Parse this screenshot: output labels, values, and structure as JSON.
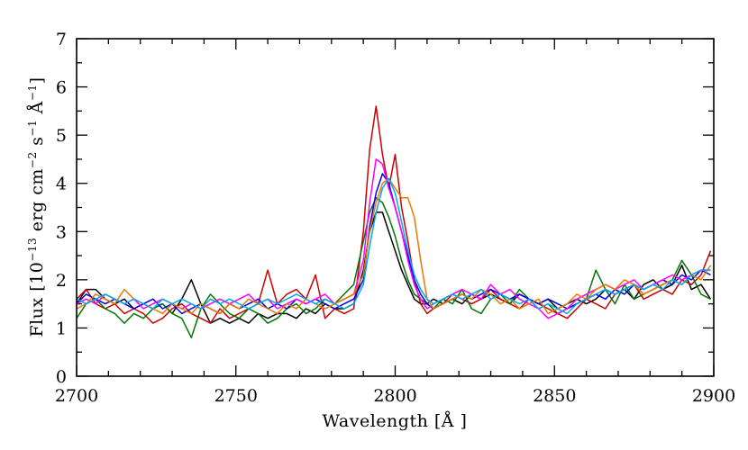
{
  "chart_data": {
    "type": "line",
    "xlabel": "Wavelength [Å ]",
    "ylabel": "Flux [10",
    "ylabel_exp1": "−13",
    "ylabel_mid1": " erg cm",
    "ylabel_exp2": "−2",
    "ylabel_mid2": " s",
    "ylabel_exp3": "−1",
    "ylabel_mid3": " Å",
    "ylabel_exp4": "−1",
    "ylabel_end": "]",
    "xlim": [
      2700,
      2900
    ],
    "ylim": [
      0,
      7
    ],
    "x_ticks": [
      2700,
      2750,
      2800,
      2850,
      2900
    ],
    "y_ticks": [
      0,
      1,
      2,
      3,
      4,
      5,
      6,
      7
    ],
    "grid": false,
    "x": [
      2700,
      2703,
      2706,
      2709,
      2712,
      2715,
      2718,
      2721,
      2724,
      2727,
      2730,
      2733,
      2736,
      2739,
      2742,
      2745,
      2748,
      2751,
      2754,
      2757,
      2760,
      2763,
      2766,
      2769,
      2772,
      2775,
      2778,
      2781,
      2784,
      2787,
      2790,
      2792,
      2794,
      2796,
      2798,
      2800,
      2802,
      2804,
      2806,
      2808,
      2810,
      2812,
      2815,
      2818,
      2821,
      2824,
      2827,
      2830,
      2833,
      2836,
      2839,
      2842,
      2845,
      2848,
      2851,
      2854,
      2857,
      2860,
      2863,
      2866,
      2869,
      2872,
      2875,
      2878,
      2881,
      2884,
      2887,
      2890,
      2893,
      2896,
      2899
    ],
    "series": [
      {
        "color": "#000000",
        "values": [
          1.5,
          1.8,
          1.8,
          1.6,
          1.5,
          1.6,
          1.4,
          1.5,
          1.4,
          1.5,
          1.3,
          1.6,
          2.0,
          1.5,
          1.1,
          1.2,
          1.1,
          1.2,
          1.1,
          1.3,
          1.2,
          1.3,
          1.3,
          1.2,
          1.4,
          1.3,
          1.5,
          1.4,
          1.4,
          1.5,
          2.2,
          3.0,
          3.4,
          3.4,
          3.0,
          2.6,
          2.2,
          1.9,
          1.6,
          1.5,
          1.5,
          1.6,
          1.5,
          1.6,
          1.5,
          1.7,
          1.6,
          1.7,
          1.6,
          1.5,
          1.7,
          1.6,
          1.5,
          1.6,
          1.4,
          1.5,
          1.6,
          1.5,
          1.6,
          1.8,
          1.7,
          1.8,
          1.6,
          1.9,
          2.0,
          1.8,
          1.9,
          2.3,
          1.8,
          1.9,
          1.6
        ]
      },
      {
        "color": "#cc0000",
        "values": [
          1.6,
          1.8,
          1.5,
          1.4,
          1.5,
          1.3,
          1.4,
          1.3,
          1.1,
          1.2,
          1.4,
          1.5,
          1.3,
          1.2,
          1.1,
          1.4,
          1.2,
          1.3,
          1.4,
          1.5,
          2.2,
          1.5,
          1.7,
          1.8,
          1.6,
          2.1,
          1.2,
          1.4,
          1.3,
          1.4,
          3.0,
          4.7,
          5.6,
          4.6,
          3.9,
          4.6,
          3.5,
          2.8,
          2.0,
          1.5,
          1.3,
          1.4,
          1.5,
          1.7,
          1.6,
          1.5,
          1.6,
          1.8,
          1.6,
          1.5,
          1.4,
          1.6,
          1.5,
          1.4,
          1.3,
          1.2,
          1.4,
          1.6,
          1.5,
          1.4,
          1.7,
          1.8,
          1.9,
          1.6,
          1.7,
          1.8,
          1.7,
          2.0,
          1.9,
          2.1,
          2.6
        ]
      },
      {
        "color": "#007700",
        "values": [
          1.2,
          1.5,
          1.6,
          1.4,
          1.3,
          1.1,
          1.3,
          1.2,
          1.4,
          1.5,
          1.3,
          1.2,
          0.8,
          1.4,
          1.7,
          1.5,
          1.3,
          1.2,
          1.4,
          1.3,
          1.1,
          1.2,
          1.4,
          1.5,
          1.3,
          1.4,
          1.6,
          1.5,
          1.7,
          1.9,
          2.8,
          3.4,
          3.7,
          3.6,
          3.3,
          2.9,
          2.4,
          2.0,
          1.7,
          1.6,
          1.5,
          1.4,
          1.6,
          1.5,
          1.8,
          1.4,
          1.3,
          1.6,
          1.7,
          1.5,
          1.8,
          1.6,
          1.4,
          1.5,
          1.3,
          1.4,
          1.5,
          1.6,
          2.2,
          1.8,
          1.5,
          1.9,
          1.6,
          1.7,
          1.8,
          1.9,
          2.0,
          2.4,
          2.1,
          1.7,
          1.6
        ]
      },
      {
        "color": "#0000ee",
        "values": [
          1.5,
          1.7,
          1.6,
          1.5,
          1.6,
          1.5,
          1.4,
          1.5,
          1.6,
          1.4,
          1.5,
          1.3,
          1.4,
          1.5,
          1.4,
          1.3,
          1.5,
          1.4,
          1.5,
          1.6,
          1.4,
          1.5,
          1.4,
          1.6,
          1.5,
          1.6,
          1.5,
          1.4,
          1.5,
          1.6,
          2.0,
          3.1,
          3.8,
          4.2,
          4.0,
          3.5,
          3.0,
          2.5,
          2.0,
          1.7,
          1.5,
          1.4,
          1.5,
          1.6,
          1.7,
          1.6,
          1.7,
          1.8,
          1.7,
          1.6,
          1.7,
          1.6,
          1.5,
          1.6,
          1.5,
          1.4,
          1.5,
          1.6,
          1.7,
          1.6,
          1.8,
          1.7,
          1.9,
          1.8,
          1.9,
          2.0,
          1.9,
          2.1,
          2.0,
          2.2,
          2.1
        ]
      },
      {
        "color": "#ff00ff",
        "values": [
          1.5,
          1.6,
          1.5,
          1.7,
          1.6,
          1.5,
          1.6,
          1.4,
          1.5,
          1.6,
          1.5,
          1.4,
          1.5,
          1.4,
          1.5,
          1.6,
          1.5,
          1.6,
          1.7,
          1.5,
          1.6,
          1.4,
          1.5,
          1.6,
          1.5,
          1.6,
          1.7,
          1.5,
          1.6,
          1.7,
          2.4,
          3.6,
          4.5,
          4.4,
          3.9,
          3.5,
          3.0,
          2.4,
          1.9,
          1.6,
          1.4,
          1.5,
          1.6,
          1.7,
          1.8,
          1.7,
          1.6,
          1.9,
          1.7,
          1.8,
          1.6,
          1.5,
          1.4,
          1.2,
          1.3,
          1.4,
          1.6,
          1.7,
          1.8,
          1.9,
          1.8,
          1.9,
          2.0,
          1.8,
          1.9,
          2.0,
          2.1,
          2.0,
          2.1,
          2.2,
          2.2
        ]
      },
      {
        "color": "#ee7700",
        "values": [
          1.4,
          1.5,
          1.7,
          1.6,
          1.5,
          1.8,
          1.6,
          1.5,
          1.4,
          1.3,
          1.5,
          1.4,
          1.3,
          1.5,
          1.4,
          1.3,
          1.5,
          1.4,
          1.6,
          1.5,
          1.4,
          1.3,
          1.5,
          1.4,
          1.6,
          1.5,
          1.4,
          1.5,
          1.6,
          1.7,
          2.1,
          3.0,
          3.6,
          4.0,
          4.1,
          3.9,
          3.7,
          3.7,
          3.3,
          2.4,
          1.6,
          1.4,
          1.5,
          1.6,
          1.7,
          1.6,
          1.8,
          1.7,
          1.5,
          1.6,
          1.4,
          1.5,
          1.6,
          1.3,
          1.4,
          1.5,
          1.7,
          1.6,
          1.8,
          1.9,
          1.8,
          2.0,
          1.9,
          1.7,
          1.8,
          1.9,
          2.0,
          1.9,
          2.1,
          2.0,
          2.3
        ]
      },
      {
        "color": "#00aaee",
        "values": [
          1.6,
          1.5,
          1.6,
          1.7,
          1.6,
          1.5,
          1.6,
          1.5,
          1.4,
          1.6,
          1.5,
          1.6,
          1.5,
          1.4,
          1.6,
          1.5,
          1.6,
          1.5,
          1.4,
          1.5,
          1.6,
          1.5,
          1.6,
          1.7,
          1.6,
          1.5,
          1.6,
          1.5,
          1.4,
          1.5,
          1.9,
          2.7,
          3.4,
          3.9,
          4.1,
          3.8,
          3.2,
          2.6,
          2.1,
          1.8,
          1.6,
          1.5,
          1.6,
          1.7,
          1.6,
          1.7,
          1.8,
          1.6,
          1.7,
          1.6,
          1.5,
          1.6,
          1.4,
          1.5,
          1.4,
          1.3,
          1.5,
          1.6,
          1.7,
          1.8,
          1.7,
          1.8,
          1.9,
          1.8,
          1.9,
          1.8,
          2.0,
          1.9,
          2.1,
          2.2,
          2.2
        ]
      }
    ]
  }
}
